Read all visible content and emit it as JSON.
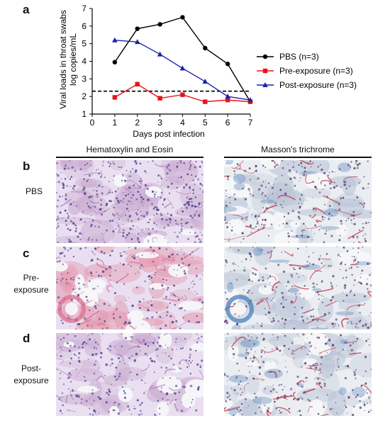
{
  "panels": {
    "a": "a",
    "b": "b",
    "c": "c",
    "d": "d"
  },
  "columns": {
    "he": "Hematoxylin and Eosin",
    "masson": "Masson's trichrome"
  },
  "rows": {
    "b": "PBS",
    "c_line1": "Pre-",
    "c_line2": "exposure",
    "d_line1": "Post-",
    "d_line2": "exposure"
  },
  "colors": {
    "pbs": "#000000",
    "pre": "#e8131b",
    "post": "#1a23a8",
    "he_bg": "#e9dff0",
    "he_pink": "#e59ab0",
    "he_nuclei": "#4b3c8c",
    "masson_bg": "#eaeef2",
    "masson_red": "#c0283e",
    "masson_blue": "#4a7fb8"
  },
  "chart_data": {
    "type": "line",
    "xlabel": "Days post infection",
    "ylabel_line1": "Viral loads in throat swabs",
    "ylabel_line2": "log copies/mL",
    "xlim": [
      0,
      7
    ],
    "ylim": [
      1,
      7
    ],
    "xticks": [
      0,
      1,
      2,
      3,
      4,
      5,
      6,
      7
    ],
    "yticks": [
      1,
      2,
      3,
      4,
      5,
      6,
      7
    ],
    "threshold": 2.3,
    "series": [
      {
        "name": "PBS (n=3)",
        "marker": "circle",
        "x": [
          1,
          2,
          3,
          4,
          5,
          6,
          7
        ],
        "y": [
          3.95,
          5.85,
          6.1,
          6.5,
          4.75,
          3.85,
          1.7
        ]
      },
      {
        "name": "Pre-exposure (n=3)",
        "marker": "square",
        "x": [
          1,
          2,
          3,
          4,
          5,
          6,
          7
        ],
        "y": [
          1.95,
          2.7,
          1.9,
          2.1,
          1.7,
          1.8,
          1.7
        ]
      },
      {
        "name": "Post-exposure (n=3)",
        "marker": "triangle",
        "x": [
          1,
          2,
          3,
          4,
          5,
          6,
          7
        ],
        "y": [
          5.2,
          5.1,
          4.4,
          3.6,
          2.85,
          2.0,
          1.8
        ]
      }
    ]
  }
}
